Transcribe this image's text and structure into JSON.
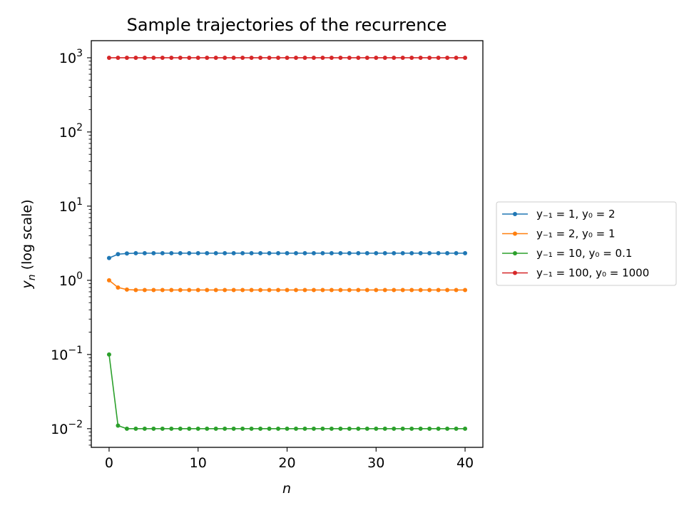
{
  "chart_data": {
    "type": "line",
    "title": "Sample trajectories of the recurrence",
    "xlabel": "n",
    "ylabel": "y_n (log scale)",
    "xlim": [
      -2,
      42
    ],
    "ylim": [
      0.0056,
      1700
    ],
    "yscale": "log",
    "xticks": [
      0,
      10,
      20,
      30,
      40
    ],
    "xtick_labels": [
      "0",
      "10",
      "20",
      "30",
      "40"
    ],
    "yticks": [
      0.01,
      0.1,
      1,
      10,
      100,
      1000
    ],
    "ytick_exponents": [
      "−2",
      "−1",
      "0",
      "1",
      "2",
      "3"
    ],
    "ytick_base": "10",
    "grid": false,
    "legend_position": "outside right",
    "series": [
      {
        "name": "y₋₁ = 1,  y₀ = 2",
        "color": "#1f77b4",
        "x": [
          0,
          1,
          2,
          3,
          4,
          5,
          6,
          7,
          8,
          9,
          10,
          11,
          12,
          13,
          14,
          15,
          16,
          17,
          18,
          19,
          20,
          21,
          22,
          23,
          24,
          25,
          26,
          27,
          28,
          29,
          30,
          31,
          32,
          33,
          34,
          35,
          36,
          37,
          38,
          39,
          40
        ],
        "y": [
          2.0,
          2.25,
          2.3,
          2.32,
          2.32,
          2.32,
          2.32,
          2.32,
          2.32,
          2.32,
          2.32,
          2.32,
          2.32,
          2.32,
          2.32,
          2.32,
          2.32,
          2.32,
          2.32,
          2.32,
          2.32,
          2.32,
          2.32,
          2.32,
          2.32,
          2.32,
          2.32,
          2.32,
          2.32,
          2.32,
          2.32,
          2.32,
          2.32,
          2.32,
          2.32,
          2.32,
          2.32,
          2.32,
          2.32,
          2.32,
          2.32
        ]
      },
      {
        "name": "y₋₁ = 2,  y₀ = 1",
        "color": "#ff7f0e",
        "x": [
          0,
          1,
          2,
          3,
          4,
          5,
          6,
          7,
          8,
          9,
          10,
          11,
          12,
          13,
          14,
          15,
          16,
          17,
          18,
          19,
          20,
          21,
          22,
          23,
          24,
          25,
          26,
          27,
          28,
          29,
          30,
          31,
          32,
          33,
          34,
          35,
          36,
          37,
          38,
          39,
          40
        ],
        "y": [
          1.0,
          0.8,
          0.75,
          0.74,
          0.74,
          0.74,
          0.74,
          0.74,
          0.74,
          0.74,
          0.74,
          0.74,
          0.74,
          0.74,
          0.74,
          0.74,
          0.74,
          0.74,
          0.74,
          0.74,
          0.74,
          0.74,
          0.74,
          0.74,
          0.74,
          0.74,
          0.74,
          0.74,
          0.74,
          0.74,
          0.74,
          0.74,
          0.74,
          0.74,
          0.74,
          0.74,
          0.74,
          0.74,
          0.74,
          0.74,
          0.74
        ]
      },
      {
        "name": "y₋₁ = 10,  y₀ = 0.1",
        "color": "#2ca02c",
        "x": [
          0,
          1,
          2,
          3,
          4,
          5,
          6,
          7,
          8,
          9,
          10,
          11,
          12,
          13,
          14,
          15,
          16,
          17,
          18,
          19,
          20,
          21,
          22,
          23,
          24,
          25,
          26,
          27,
          28,
          29,
          30,
          31,
          32,
          33,
          34,
          35,
          36,
          37,
          38,
          39,
          40
        ],
        "y": [
          0.1,
          0.011,
          0.01,
          0.01,
          0.01,
          0.01,
          0.01,
          0.01,
          0.01,
          0.01,
          0.01,
          0.01,
          0.01,
          0.01,
          0.01,
          0.01,
          0.01,
          0.01,
          0.01,
          0.01,
          0.01,
          0.01,
          0.01,
          0.01,
          0.01,
          0.01,
          0.01,
          0.01,
          0.01,
          0.01,
          0.01,
          0.01,
          0.01,
          0.01,
          0.01,
          0.01,
          0.01,
          0.01,
          0.01,
          0.01,
          0.01
        ]
      },
      {
        "name": "y₋₁ = 100,  y₀ = 1000",
        "color": "#d62728",
        "x": [
          0,
          1,
          2,
          3,
          4,
          5,
          6,
          7,
          8,
          9,
          10,
          11,
          12,
          13,
          14,
          15,
          16,
          17,
          18,
          19,
          20,
          21,
          22,
          23,
          24,
          25,
          26,
          27,
          28,
          29,
          30,
          31,
          32,
          33,
          34,
          35,
          36,
          37,
          38,
          39,
          40
        ],
        "y": [
          1000,
          1000,
          1000,
          1000,
          1000,
          1000,
          1000,
          1000,
          1000,
          1000,
          1000,
          1000,
          1000,
          1000,
          1000,
          1000,
          1000,
          1000,
          1000,
          1000,
          1000,
          1000,
          1000,
          1000,
          1000,
          1000,
          1000,
          1000,
          1000,
          1000,
          1000,
          1000,
          1000,
          1000,
          1000,
          1000,
          1000,
          1000,
          1000,
          1000,
          1000
        ]
      }
    ]
  }
}
